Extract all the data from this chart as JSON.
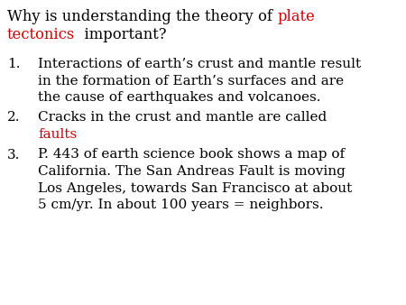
{
  "background_color": "#ffffff",
  "title_line1_seg1": "Why is understanding the theory of ",
  "title_line1_seg2": "plate",
  "title_line1_seg1_color": "#000000",
  "title_line1_seg2_color": "#cc0000",
  "title_line2_seg1": "tectonics",
  "title_line2_seg2": "  important?",
  "title_line2_seg1_color": "#cc0000",
  "title_line2_seg2_color": "#000000",
  "items": [
    {
      "number": "1.",
      "lines": [
        {
          "text": "Interactions of earth’s crust and mantle result",
          "color": "#000000"
        },
        {
          "text": "in the formation of Earth’s surfaces and are",
          "color": "#000000"
        },
        {
          "text": "the cause of earthquakes and volcanoes.",
          "color": "#000000"
        }
      ]
    },
    {
      "number": "2.",
      "lines": [
        {
          "text": "Cracks in the crust and mantle are called",
          "color": "#000000"
        },
        {
          "text": "faults",
          "color": "#cc0000"
        }
      ]
    },
    {
      "number": "3.",
      "lines": [
        {
          "text": "P. 443 of earth science book shows a map of",
          "color": "#000000"
        },
        {
          "text": "California. The San Andreas Fault is moving",
          "color": "#000000"
        },
        {
          "text": "Los Angeles, towards San Francisco at about",
          "color": "#000000"
        },
        {
          "text": "5 cm/yr. In about 100 years = neighbors.",
          "color": "#000000"
        }
      ]
    }
  ],
  "title_fontsize": 11.8,
  "body_fontsize": 11.0,
  "font_family": "serif"
}
